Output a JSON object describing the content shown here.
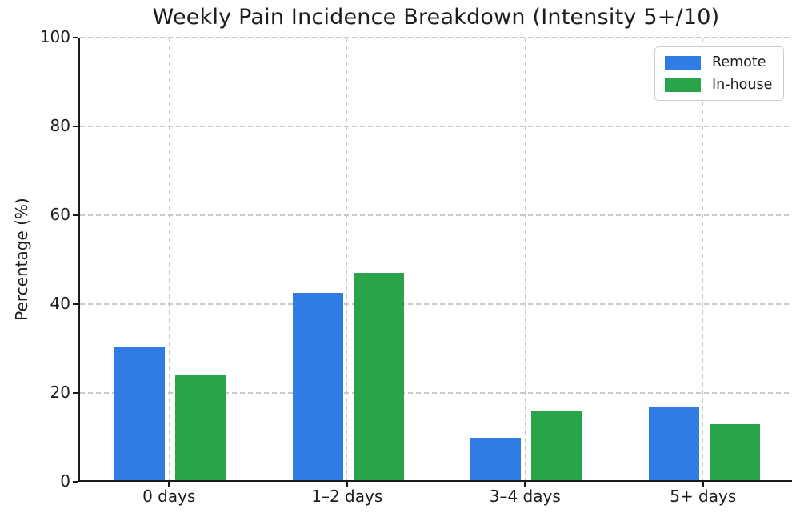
{
  "chart_data": {
    "type": "bar",
    "title": "Weekly Pain Incidence Breakdown (Intensity 5+/10)",
    "xlabel": "",
    "ylabel": "Percentage (%)",
    "categories": [
      "0 days",
      "1–2 days",
      "3–4 days",
      "5+ days"
    ],
    "series": [
      {
        "name": "Remote",
        "color": "#2e7ce4",
        "values": [
          30.5,
          42.5,
          10,
          16.7
        ]
      },
      {
        "name": "In-house",
        "color": "#2aa44a",
        "values": [
          24,
          47,
          16,
          13
        ]
      }
    ],
    "ylim": [
      0,
      100
    ],
    "yticks": [
      0,
      20,
      40,
      60,
      80,
      100
    ],
    "grid": "dashed, horizontal and vertical",
    "legend_position": "upper right"
  }
}
